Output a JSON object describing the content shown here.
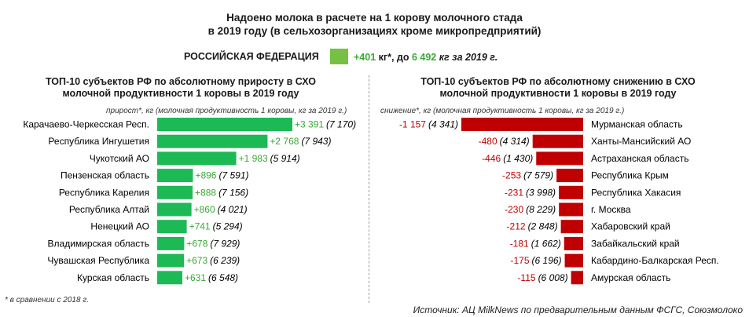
{
  "title_line1": "Надоено молока в расчете на 1 корову молочного стада",
  "title_line2": "в 2019 году (в сельхозорганизациях кроме микропредприятий)",
  "rf": {
    "label": "РОССИЙСКАЯ ФЕДЕРАЦИЯ",
    "delta": "+401",
    "mid": " кг*, до ",
    "value": "6 492",
    "tail": " кг за 2019 г.",
    "color": "#76c043"
  },
  "left_title_1": "ТОП-10 субъектов РФ по абсолютному приросту в СХО",
  "left_title_2": "молочной продуктивности 1 коровы в 2019 году",
  "left_note": "прирост*, кг (молочная продуктивность 1 коровы, кг за 2019 г.)",
  "right_title_1": "ТОП-10 субъектов РФ по абсолютному снижению в СХО",
  "right_title_2": "молочной продуктивности 1 коровы в 2019 году",
  "right_note": "снижение*, кг (молочная продуктивность 1 коровы, кг за 2019 г.)",
  "footnote": "* в сравнении с 2018 г.",
  "source": "Источник: АЦ MilkNews по предварительным данным ФСГС, Союзмолоко",
  "chart_data": [
    {
      "type": "bar",
      "orientation": "horizontal",
      "color": "#1db954",
      "categories": [
        "Карачаево-Черкесская Респ.",
        "Республика Ингушетия",
        "Чукотский АО",
        "Пензенская область",
        "Республика Карелия",
        "Республика Алтай",
        "Ненецкий АО",
        "Владимирская область",
        "Чувашская Республика",
        "Курская область"
      ],
      "values": [
        3391,
        2768,
        1983,
        896,
        888,
        860,
        741,
        678,
        673,
        631
      ],
      "value_labels": [
        "+3 391",
        "+2 768",
        "+1 983",
        "+896",
        "+888",
        "+860",
        "+741",
        "+678",
        "+673",
        "+631"
      ],
      "secondary_labels": [
        "(7 170)",
        "(7 943)",
        "(5 914)",
        "(7 591)",
        "(7 156)",
        "(4 021)",
        "(5 294)",
        "(7 929)",
        "(6 239)",
        "(6 548)"
      ]
    },
    {
      "type": "bar",
      "orientation": "horizontal",
      "color": "#c00000",
      "categories": [
        "Мурманская область",
        "Ханты-Мансийский АО",
        "Астраханская область",
        "Республика Крым",
        "Республика Хакасия",
        "г. Москва",
        "Хабаровский край",
        "Забайкальский край",
        "Кабардино-Балкарская Респ.",
        "Амурская область"
      ],
      "values": [
        -1157,
        -480,
        -446,
        -253,
        -231,
        -230,
        -212,
        -181,
        -175,
        -115
      ],
      "value_labels": [
        "-1 157",
        "-480",
        "-446",
        "-253",
        "-231",
        "-230",
        "-212",
        "-181",
        "-175",
        "-115"
      ],
      "secondary_labels": [
        "(4 341)",
        "(4 314)",
        "(1 430)",
        "(7 579)",
        "(3 998)",
        "(8 229)",
        "(2 848)",
        "(1 662)",
        "(6 196)",
        "(6 008)"
      ]
    }
  ]
}
